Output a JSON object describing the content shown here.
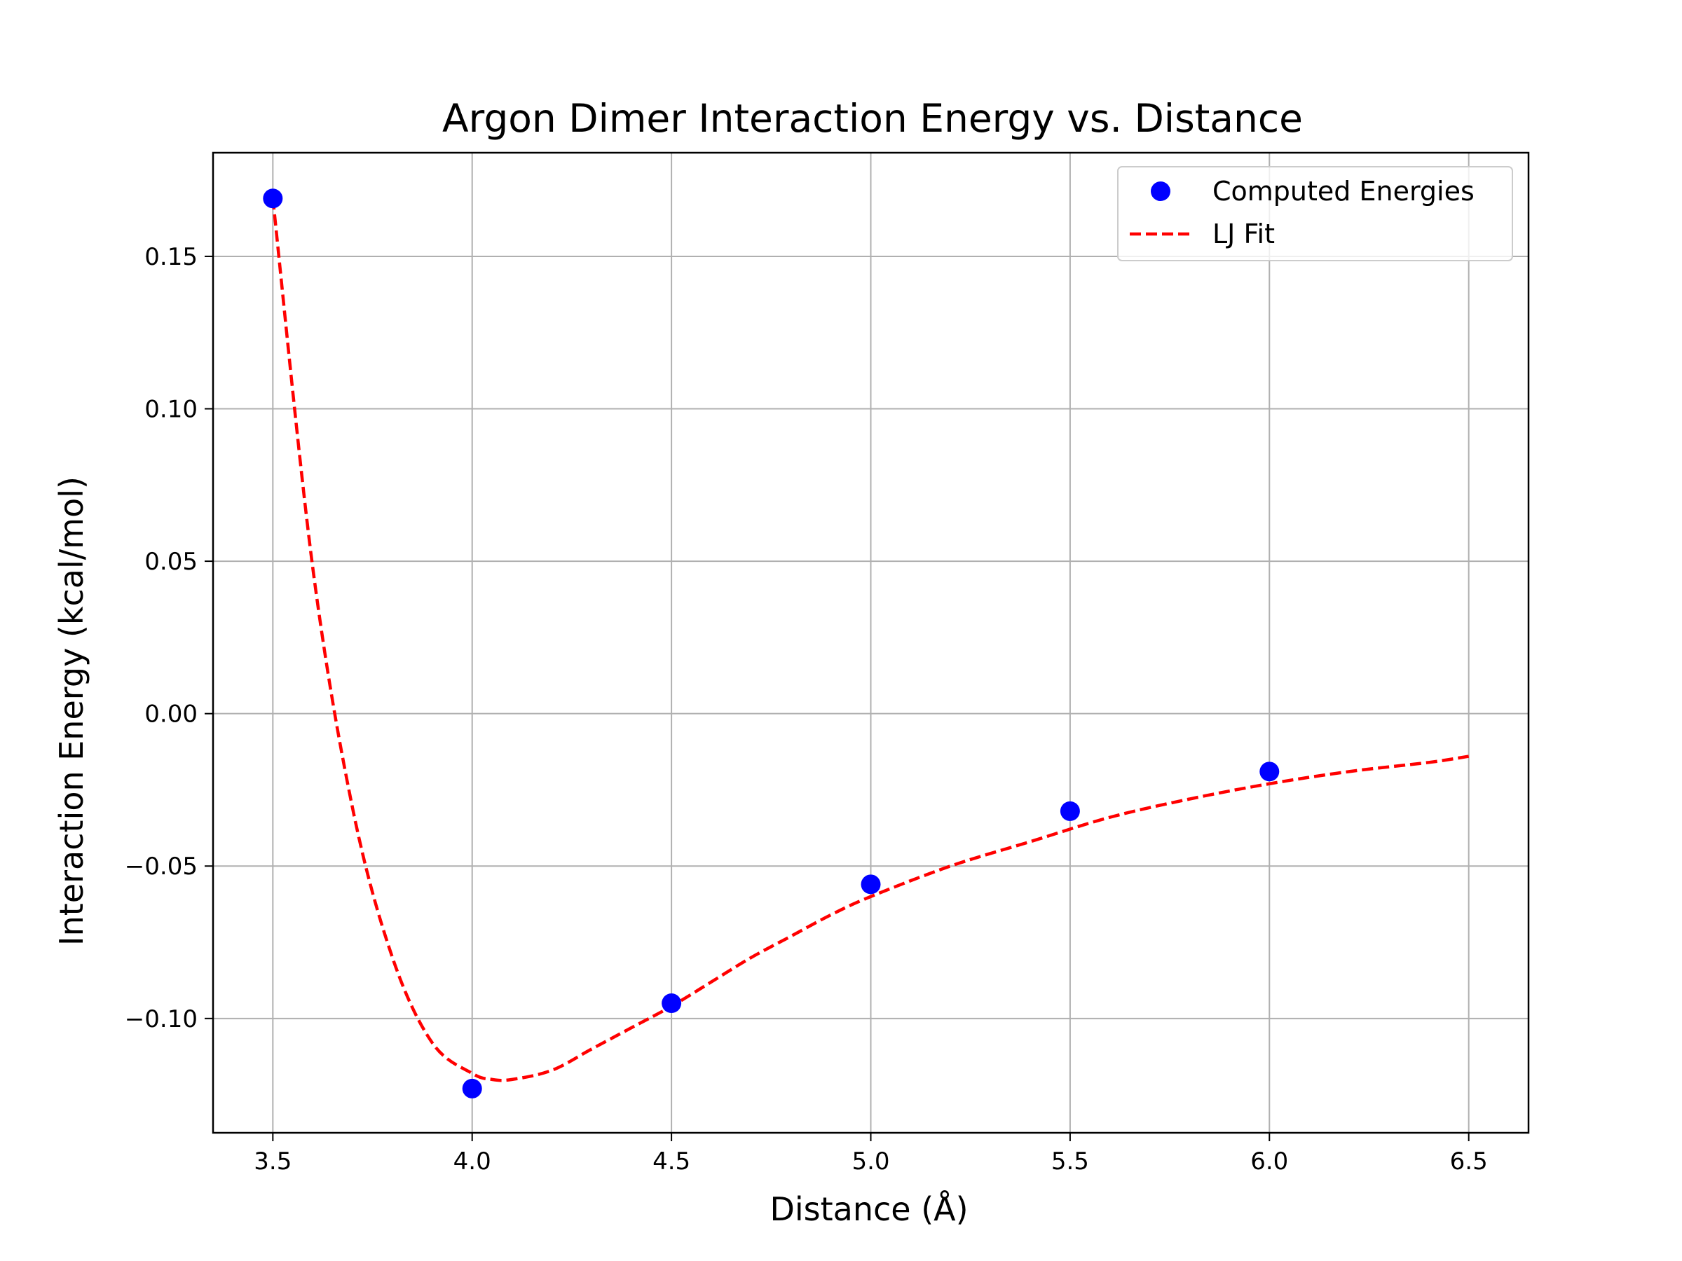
{
  "chart_data": {
    "type": "line",
    "title": "Argon Dimer Interaction Energy vs. Distance",
    "xlabel": "Distance (Å)",
    "ylabel": "Interaction Energy (kcal/mol)",
    "xlim": [
      3.35,
      6.65
    ],
    "ylim": [
      -0.1375,
      0.184
    ],
    "xticks": [
      3.5,
      4.0,
      4.5,
      5.0,
      5.5,
      6.0,
      6.5
    ],
    "xtick_labels": [
      "3.5",
      "4.0",
      "4.5",
      "5.0",
      "5.5",
      "6.0",
      "6.5"
    ],
    "yticks": [
      -0.1,
      -0.05,
      0.0,
      0.05,
      0.1,
      0.15
    ],
    "ytick_labels": [
      "−0.10",
      "−0.05",
      "0.00",
      "0.05",
      "0.10",
      "0.15"
    ],
    "grid": true,
    "legend_position": "top-right",
    "series": [
      {
        "name": "Computed Energies",
        "kind": "scatter",
        "color": "#0000ff",
        "x": [
          3.5,
          4.0,
          4.5,
          5.0,
          5.5,
          6.0
        ],
        "y": [
          0.169,
          -0.123,
          -0.095,
          -0.056,
          -0.032,
          -0.019
        ]
      },
      {
        "name": "LJ Fit",
        "kind": "line",
        "style": "dashed",
        "color": "#ff0000",
        "x": [
          3.5,
          3.6,
          3.7,
          3.8,
          3.9,
          4.0,
          4.05,
          4.1,
          4.2,
          4.3,
          4.4,
          4.5,
          4.6,
          4.7,
          4.8,
          4.9,
          5.0,
          5.2,
          5.4,
          5.6,
          5.8,
          6.0,
          6.2,
          6.4,
          6.5
        ],
        "y": [
          0.169,
          0.048,
          -0.031,
          -0.08,
          -0.108,
          -0.118,
          -0.12,
          -0.12,
          -0.117,
          -0.11,
          -0.103,
          -0.096,
          -0.088,
          -0.08,
          -0.073,
          -0.066,
          -0.06,
          -0.05,
          -0.042,
          -0.034,
          -0.028,
          -0.023,
          -0.019,
          -0.016,
          -0.014
        ]
      }
    ]
  }
}
